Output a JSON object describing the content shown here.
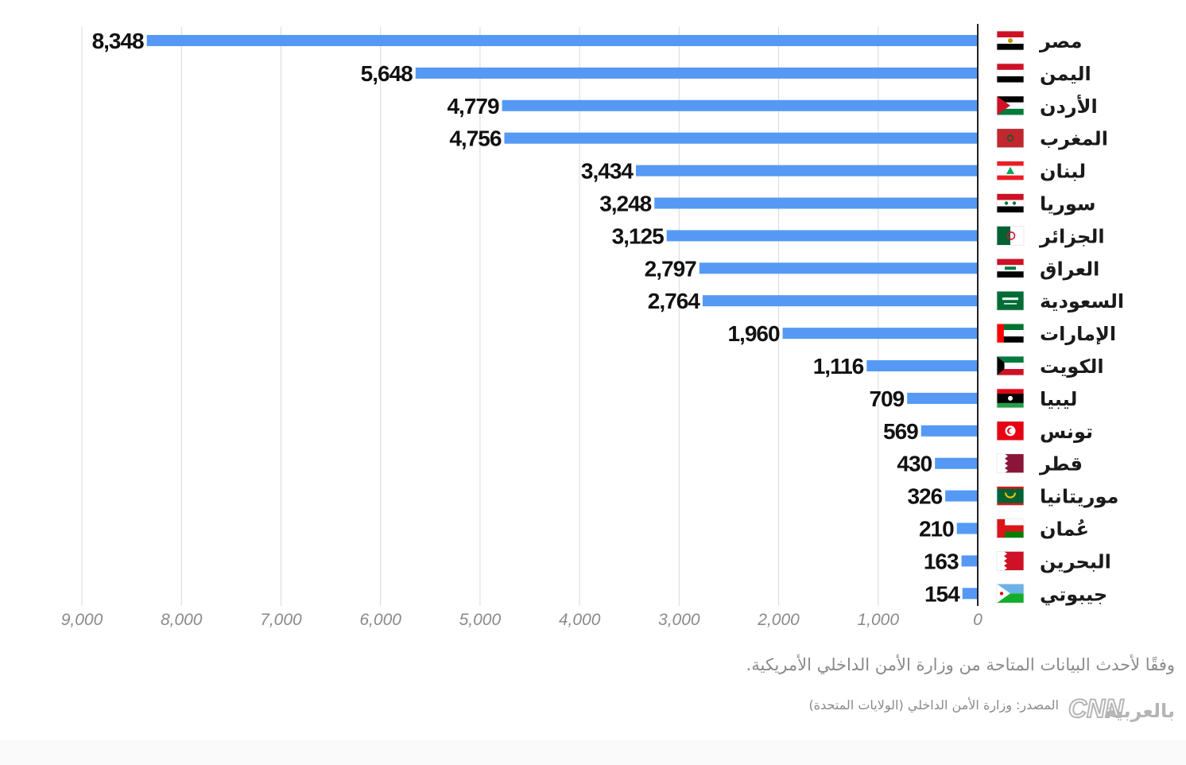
{
  "footer": {
    "note": "وفقًا لأحدث البيانات المتاحة من وزارة الأمن الداخلي الأمريكية.",
    "source": "المصدر: وزارة الأمن الداخلي (الولايات المتحدة)",
    "brand_text": "بالعربية"
  },
  "colors": {
    "bar": "#5599f5",
    "grid": "#d9d9d9",
    "axis": "#222222",
    "value_text": "#111111",
    "tick_text": "#8a8a8a"
  },
  "chart_data": {
    "type": "bar",
    "orientation": "horizontal",
    "direction": "right-to-left",
    "title": "",
    "xlabel": "",
    "ylabel": "",
    "xlim": [
      0,
      9000
    ],
    "grid": true,
    "categories": [
      "مصر",
      "اليمن",
      "الأردن",
      "المغرب",
      "لبنان",
      "سوريا",
      "الجزائر",
      "العراق",
      "السعودية",
      "الإمارات",
      "الكويت",
      "ليبيا",
      "تونس",
      "قطر",
      "موريتانيا",
      "عُمان",
      "البحرين",
      "جيبوتي"
    ],
    "values": [
      8348,
      5648,
      4779,
      4756,
      3434,
      3248,
      3125,
      2797,
      2764,
      1960,
      1116,
      709,
      569,
      430,
      326,
      210,
      163,
      154
    ],
    "value_labels": [
      "8,348",
      "5,648",
      "4,779",
      "4,756",
      "3,434",
      "3,248",
      "3,125",
      "2,797",
      "2,764",
      "1,960",
      "1,116",
      "709",
      "569",
      "430",
      "326",
      "210",
      "163",
      "154"
    ],
    "flags": [
      "egypt-flag-icon",
      "yemen-flag-icon",
      "jordan-flag-icon",
      "morocco-flag-icon",
      "lebanon-flag-icon",
      "syria-flag-icon",
      "algeria-flag-icon",
      "iraq-flag-icon",
      "saudi-flag-icon",
      "uae-flag-icon",
      "kuwait-flag-icon",
      "libya-flag-icon",
      "tunisia-flag-icon",
      "qatar-flag-icon",
      "mauritania-flag-icon",
      "oman-flag-icon",
      "bahrain-flag-icon",
      "djibouti-flag-icon"
    ],
    "x_ticks": [
      0,
      1000,
      2000,
      3000,
      4000,
      5000,
      6000,
      7000,
      8000,
      9000
    ],
    "x_tick_labels": [
      "0",
      "1,000",
      "2,000",
      "3,000",
      "4,000",
      "5,000",
      "6,000",
      "7,000",
      "8,000",
      "9,000"
    ]
  }
}
